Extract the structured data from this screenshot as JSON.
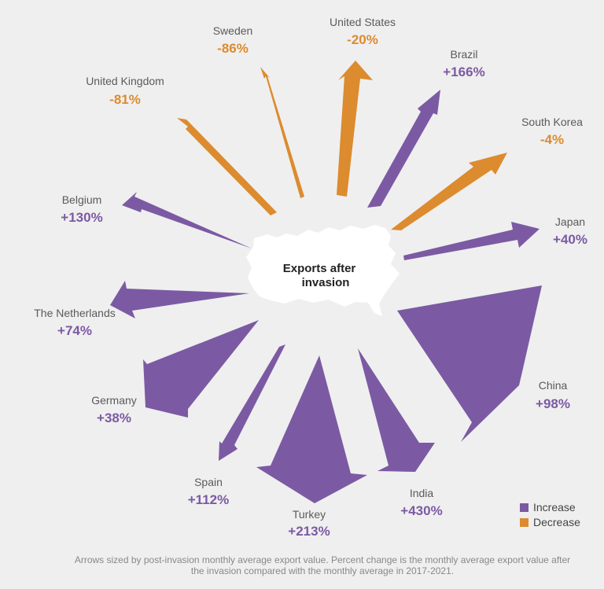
{
  "chart_data": {
    "type": "radial-arrows",
    "center_label": [
      "Exports after",
      "invasion"
    ],
    "series": [
      {
        "name": "United States",
        "value": "-20%",
        "direction": "decrease"
      },
      {
        "name": "Brazil",
        "value": "+166%",
        "direction": "increase"
      },
      {
        "name": "South Korea",
        "value": "-4%",
        "direction": "decrease"
      },
      {
        "name": "Japan",
        "value": "+40%",
        "direction": "increase"
      },
      {
        "name": "China",
        "value": "+98%",
        "direction": "increase"
      },
      {
        "name": "India",
        "value": "+430%",
        "direction": "increase"
      },
      {
        "name": "Turkey",
        "value": "+213%",
        "direction": "increase"
      },
      {
        "name": "Spain",
        "value": "+112%",
        "direction": "increase"
      },
      {
        "name": "Germany",
        "value": "+38%",
        "direction": "increase"
      },
      {
        "name": "The Netherlands",
        "value": "+74%",
        "direction": "increase"
      },
      {
        "name": "Belgium",
        "value": "+130%",
        "direction": "increase"
      },
      {
        "name": "United Kingdom",
        "value": "-81%",
        "direction": "decrease"
      },
      {
        "name": "Sweden",
        "value": "-86%",
        "direction": "decrease"
      }
    ],
    "legend": [
      {
        "label": "Increase",
        "color": "#7b5aa3"
      },
      {
        "label": "Decrease",
        "color": "#dc8b2e"
      }
    ],
    "colors": {
      "increase": "#7b5aa3",
      "decrease": "#dc8b2e",
      "map": "#ffffff"
    }
  },
  "footnote": [
    "Arrows sized by post-invasion monthly average export value. Percent change is the monthly average export value after",
    "the invasion compared with the monthly average in 2017-2021."
  ]
}
